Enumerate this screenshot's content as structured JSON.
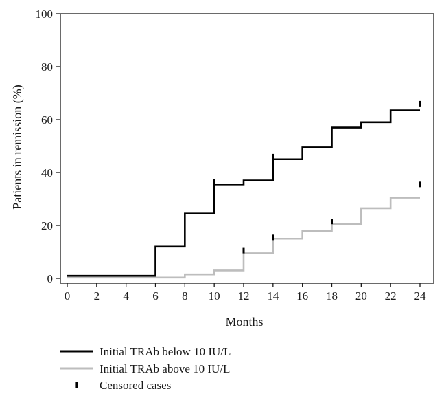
{
  "chart_data": {
    "type": "line",
    "title": "",
    "xlabel": "Months",
    "ylabel": "Patients in remission (%)",
    "xlim": [
      0,
      24
    ],
    "ylim": [
      0,
      100
    ],
    "xticks": [
      0,
      2,
      4,
      6,
      8,
      10,
      12,
      14,
      16,
      18,
      20,
      22,
      24
    ],
    "yticks": [
      0,
      20,
      40,
      60,
      80,
      100
    ],
    "grid": false,
    "legend_position": "bottom-left",
    "series": [
      {
        "name": "Initial TRAb below 10 IU/L",
        "color": "#000000",
        "step": true,
        "x": [
          0,
          6,
          8,
          10,
          12,
          14,
          16,
          18,
          20,
          22,
          24
        ],
        "y": [
          1,
          12,
          24.5,
          35.5,
          37,
          45,
          49.5,
          57,
          59,
          63.5,
          63.5
        ],
        "censored": [
          {
            "x": 10,
            "y": 36.5
          },
          {
            "x": 14,
            "y": 46
          },
          {
            "x": 24,
            "y": 66
          }
        ]
      },
      {
        "name": "Initial TRAb above 10 IU/L",
        "color": "#bdbdbd",
        "step": true,
        "x": [
          0,
          8,
          10,
          12,
          14,
          16,
          18,
          20,
          22,
          24
        ],
        "y": [
          0.3,
          1.5,
          3,
          9.5,
          15,
          18,
          20.5,
          26.5,
          30.5,
          30.5
        ],
        "censored": [
          {
            "x": 12,
            "y": 10.5
          },
          {
            "x": 14,
            "y": 15.5
          },
          {
            "x": 18,
            "y": 21.5
          },
          {
            "x": 24,
            "y": 35.5
          }
        ]
      }
    ],
    "legend": [
      {
        "label": "Initial TRAb below 10 IU/L",
        "kind": "line",
        "color": "#000000"
      },
      {
        "label": "Initial TRAb above 10 IU/L",
        "kind": "line",
        "color": "#bdbdbd"
      },
      {
        "label": "Censored cases",
        "kind": "tick",
        "color": "#000000"
      }
    ]
  }
}
